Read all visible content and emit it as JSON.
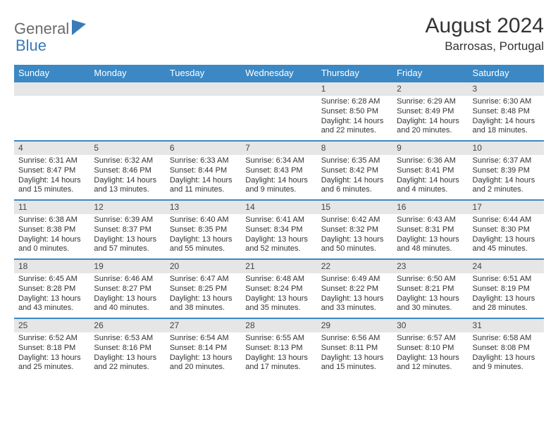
{
  "brand": {
    "text1": "General",
    "text2": "Blue"
  },
  "title": "August 2024",
  "location": "Barrosas, Portugal",
  "colors": {
    "header_bg": "#3b88c4",
    "daynum_bg": "#e6e6e6",
    "rule": "#3b88c4",
    "text": "#333333",
    "logo_gray": "#6b6b6b",
    "logo_blue": "#3a7ab8"
  },
  "dow": [
    "Sunday",
    "Monday",
    "Tuesday",
    "Wednesday",
    "Thursday",
    "Friday",
    "Saturday"
  ],
  "weeks": [
    [
      null,
      null,
      null,
      null,
      {
        "n": "1",
        "sr": "6:28 AM",
        "ss": "8:50 PM",
        "dl": "14 hours and 22 minutes."
      },
      {
        "n": "2",
        "sr": "6:29 AM",
        "ss": "8:49 PM",
        "dl": "14 hours and 20 minutes."
      },
      {
        "n": "3",
        "sr": "6:30 AM",
        "ss": "8:48 PM",
        "dl": "14 hours and 18 minutes."
      }
    ],
    [
      {
        "n": "4",
        "sr": "6:31 AM",
        "ss": "8:47 PM",
        "dl": "14 hours and 15 minutes."
      },
      {
        "n": "5",
        "sr": "6:32 AM",
        "ss": "8:46 PM",
        "dl": "14 hours and 13 minutes."
      },
      {
        "n": "6",
        "sr": "6:33 AM",
        "ss": "8:44 PM",
        "dl": "14 hours and 11 minutes."
      },
      {
        "n": "7",
        "sr": "6:34 AM",
        "ss": "8:43 PM",
        "dl": "14 hours and 9 minutes."
      },
      {
        "n": "8",
        "sr": "6:35 AM",
        "ss": "8:42 PM",
        "dl": "14 hours and 6 minutes."
      },
      {
        "n": "9",
        "sr": "6:36 AM",
        "ss": "8:41 PM",
        "dl": "14 hours and 4 minutes."
      },
      {
        "n": "10",
        "sr": "6:37 AM",
        "ss": "8:39 PM",
        "dl": "14 hours and 2 minutes."
      }
    ],
    [
      {
        "n": "11",
        "sr": "6:38 AM",
        "ss": "8:38 PM",
        "dl": "14 hours and 0 minutes."
      },
      {
        "n": "12",
        "sr": "6:39 AM",
        "ss": "8:37 PM",
        "dl": "13 hours and 57 minutes."
      },
      {
        "n": "13",
        "sr": "6:40 AM",
        "ss": "8:35 PM",
        "dl": "13 hours and 55 minutes."
      },
      {
        "n": "14",
        "sr": "6:41 AM",
        "ss": "8:34 PM",
        "dl": "13 hours and 52 minutes."
      },
      {
        "n": "15",
        "sr": "6:42 AM",
        "ss": "8:32 PM",
        "dl": "13 hours and 50 minutes."
      },
      {
        "n": "16",
        "sr": "6:43 AM",
        "ss": "8:31 PM",
        "dl": "13 hours and 48 minutes."
      },
      {
        "n": "17",
        "sr": "6:44 AM",
        "ss": "8:30 PM",
        "dl": "13 hours and 45 minutes."
      }
    ],
    [
      {
        "n": "18",
        "sr": "6:45 AM",
        "ss": "8:28 PM",
        "dl": "13 hours and 43 minutes."
      },
      {
        "n": "19",
        "sr": "6:46 AM",
        "ss": "8:27 PM",
        "dl": "13 hours and 40 minutes."
      },
      {
        "n": "20",
        "sr": "6:47 AM",
        "ss": "8:25 PM",
        "dl": "13 hours and 38 minutes."
      },
      {
        "n": "21",
        "sr": "6:48 AM",
        "ss": "8:24 PM",
        "dl": "13 hours and 35 minutes."
      },
      {
        "n": "22",
        "sr": "6:49 AM",
        "ss": "8:22 PM",
        "dl": "13 hours and 33 minutes."
      },
      {
        "n": "23",
        "sr": "6:50 AM",
        "ss": "8:21 PM",
        "dl": "13 hours and 30 minutes."
      },
      {
        "n": "24",
        "sr": "6:51 AM",
        "ss": "8:19 PM",
        "dl": "13 hours and 28 minutes."
      }
    ],
    [
      {
        "n": "25",
        "sr": "6:52 AM",
        "ss": "8:18 PM",
        "dl": "13 hours and 25 minutes."
      },
      {
        "n": "26",
        "sr": "6:53 AM",
        "ss": "8:16 PM",
        "dl": "13 hours and 22 minutes."
      },
      {
        "n": "27",
        "sr": "6:54 AM",
        "ss": "8:14 PM",
        "dl": "13 hours and 20 minutes."
      },
      {
        "n": "28",
        "sr": "6:55 AM",
        "ss": "8:13 PM",
        "dl": "13 hours and 17 minutes."
      },
      {
        "n": "29",
        "sr": "6:56 AM",
        "ss": "8:11 PM",
        "dl": "13 hours and 15 minutes."
      },
      {
        "n": "30",
        "sr": "6:57 AM",
        "ss": "8:10 PM",
        "dl": "13 hours and 12 minutes."
      },
      {
        "n": "31",
        "sr": "6:58 AM",
        "ss": "8:08 PM",
        "dl": "13 hours and 9 minutes."
      }
    ]
  ],
  "labels": {
    "sunrise": "Sunrise:",
    "sunset": "Sunset:",
    "daylight": "Daylight:"
  }
}
